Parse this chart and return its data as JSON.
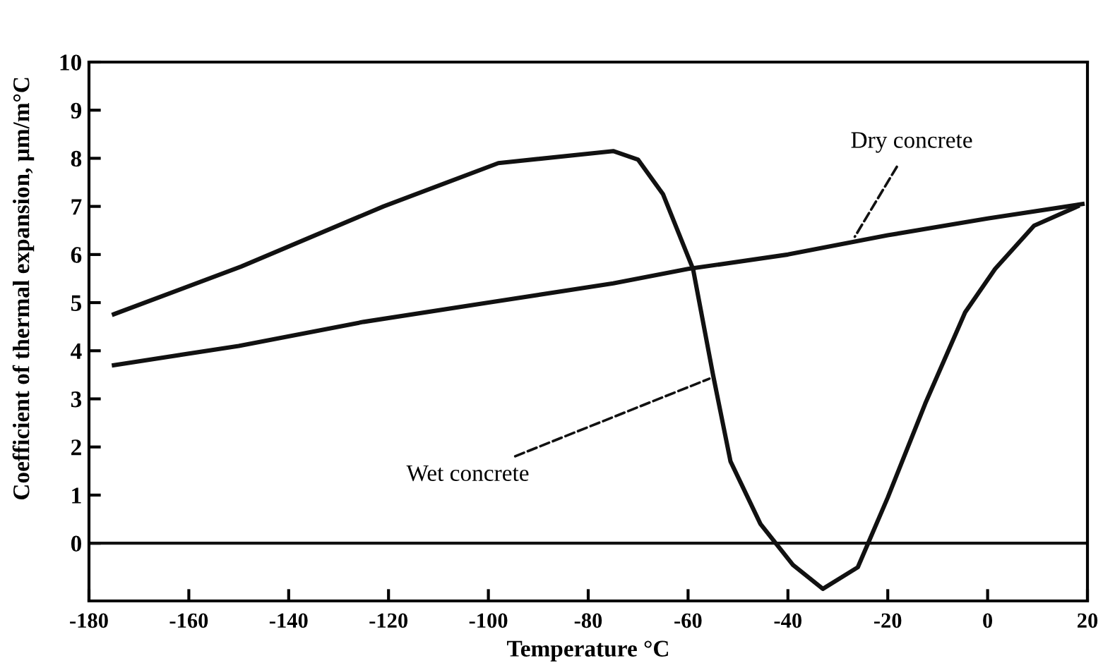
{
  "chart_data": {
    "type": "line",
    "xlabel": "Temperature °C",
    "ylabel": "Coefficient of thermal expansion, μm/m°C",
    "xlim": [
      -180,
      20
    ],
    "xticks": [
      -180,
      -160,
      -140,
      -120,
      -100,
      -80,
      -60,
      -40,
      -20,
      0,
      20
    ],
    "ylim": [
      -1.2,
      10
    ],
    "ref_lines": [
      {
        "axis": "y",
        "value": 0,
        "color": "#111111"
      }
    ],
    "yticks": [
      0,
      1,
      2,
      3,
      4,
      5,
      6,
      7,
      8,
      9,
      10
    ],
    "grid": false,
    "legend": false,
    "marker": "none",
    "line_style": "solid",
    "series": [
      {
        "color": "#111111",
        "x": [
          -175,
          -150,
          -125,
          -100,
          -75,
          -60,
          -40,
          -20,
          0,
          19
        ],
        "values": [
          3.7,
          4.1,
          4.6,
          5.0,
          5.4,
          5.7,
          6.0,
          6.4,
          6.75,
          7.05
        ]
      },
      {
        "color": "#111111",
        "x": [
          -175,
          -149.5,
          -121,
          -98,
          -75,
          -70,
          -65,
          -59,
          -55,
          -51.5,
          -45.5,
          -39,
          -33,
          -26,
          -20,
          -12.5,
          -4.5,
          1.5,
          9.3,
          18
        ],
        "values": [
          4.76,
          5.75,
          7.0,
          7.9,
          8.15,
          7.97,
          7.25,
          5.7,
          3.5,
          1.7,
          0.4,
          -0.45,
          -0.95,
          -0.5,
          0.95,
          2.9,
          4.8,
          5.7,
          6.6,
          7.0
        ]
      }
    ],
    "annotations": [
      {
        "text": "Dry concrete",
        "x": -27,
        "y": 6.3
      },
      {
        "text": "Wet concrete",
        "x": -55,
        "y": 3.45
      }
    ]
  }
}
